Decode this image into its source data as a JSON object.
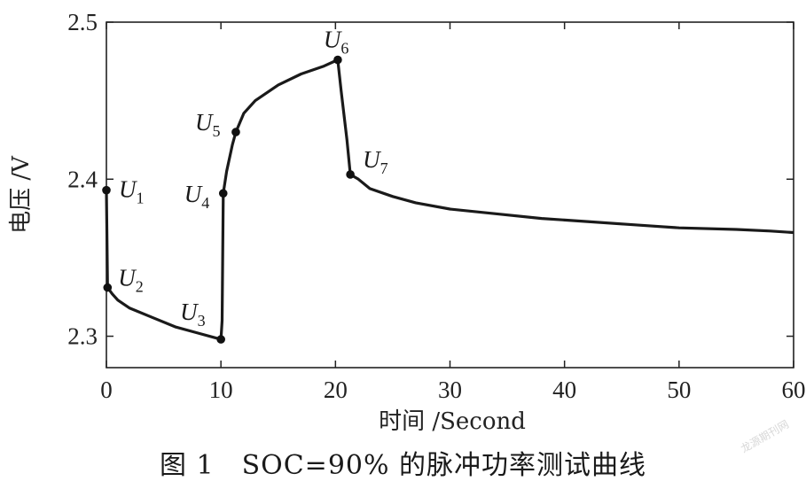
{
  "chart_data": {
    "type": "line",
    "title": "",
    "xlabel": "时间 /Second",
    "ylabel": "电压 /V",
    "xlim": [
      0,
      60
    ],
    "ylim": [
      2.28,
      2.5
    ],
    "x_ticks": [
      0,
      10,
      20,
      30,
      40,
      50,
      60
    ],
    "y_ticks": [
      2.3,
      2.4,
      2.5
    ],
    "grid": false,
    "series": [
      {
        "name": "",
        "x": [
          0,
          0.1,
          0.5,
          1,
          2,
          4,
          6,
          8,
          10,
          10.1,
          10.2,
          10.5,
          11,
          11.3,
          12,
          13,
          15,
          17,
          19,
          20.2,
          20.5,
          21,
          21.3,
          22,
          23,
          25,
          27,
          30,
          34,
          38,
          42,
          46,
          50,
          55,
          58,
          60
        ],
        "y": [
          2.393,
          2.331,
          2.327,
          2.323,
          2.318,
          2.312,
          2.306,
          2.302,
          2.298,
          2.31,
          2.391,
          2.405,
          2.422,
          2.43,
          2.442,
          2.45,
          2.46,
          2.467,
          2.472,
          2.476,
          2.456,
          2.425,
          2.403,
          2.4,
          2.394,
          2.389,
          2.385,
          2.381,
          2.378,
          2.375,
          2.373,
          2.371,
          2.369,
          2.368,
          2.367,
          2.366
        ]
      }
    ],
    "markers": [
      {
        "label": "U",
        "sub": "1",
        "x": 0,
        "y": 2.393
      },
      {
        "label": "U",
        "sub": "2",
        "x": 0.1,
        "y": 2.331
      },
      {
        "label": "U",
        "sub": "3",
        "x": 10,
        "y": 2.298
      },
      {
        "label": "U",
        "sub": "4",
        "x": 10.2,
        "y": 2.391
      },
      {
        "label": "U",
        "sub": "5",
        "x": 11.3,
        "y": 2.43
      },
      {
        "label": "U",
        "sub": "6",
        "x": 20.2,
        "y": 2.476
      },
      {
        "label": "U",
        "sub": "7",
        "x": 21.3,
        "y": 2.403
      }
    ]
  },
  "caption": "图 1　SOC=90% 的脉冲功率测试曲线",
  "watermark": "龙源期刊网"
}
